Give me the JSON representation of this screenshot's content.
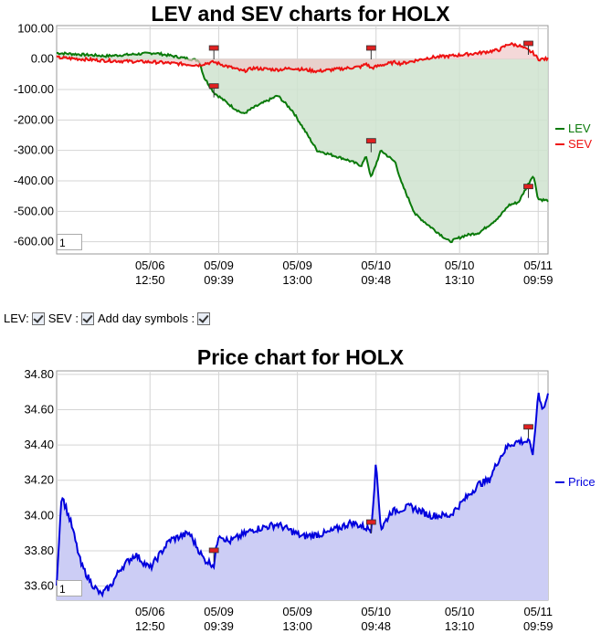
{
  "top_chart": {
    "title": "LEV and SEV charts for HOLX",
    "y_ticks": [
      "100.00",
      "0.00",
      "-100.00",
      "-200.00",
      "-300.00",
      "-400.00",
      "-500.00",
      "-600.00"
    ],
    "x_ticks": [
      {
        "date": "05/06",
        "time": "12:50"
      },
      {
        "date": "05/09",
        "time": "09:39"
      },
      {
        "date": "05/09",
        "time": "13:00"
      },
      {
        "date": "05/10",
        "time": "09:48"
      },
      {
        "date": "05/10",
        "time": "13:10"
      },
      {
        "date": "05/11",
        "time": "09:59"
      }
    ],
    "legend": [
      "LEV",
      "SEV"
    ],
    "zoom_value": "1"
  },
  "controls": {
    "lev_label": "LEV:",
    "sev_label": "SEV :",
    "day_label": "Add day symbols :"
  },
  "bottom_chart": {
    "title": "Price chart for HOLX",
    "y_ticks": [
      "34.80",
      "34.60",
      "34.40",
      "34.20",
      "34.00",
      "33.80",
      "33.60"
    ],
    "x_ticks": [
      {
        "date": "05/06",
        "time": "12:50"
      },
      {
        "date": "05/09",
        "time": "09:39"
      },
      {
        "date": "05/09",
        "time": "13:00"
      },
      {
        "date": "05/10",
        "time": "09:48"
      },
      {
        "date": "05/10",
        "time": "13:10"
      },
      {
        "date": "05/11",
        "time": "09:59"
      }
    ],
    "legend": [
      "Price"
    ],
    "zoom_value": "1"
  },
  "colors": {
    "lev": "#0a7a0a",
    "lev_fill": "#cfe3cf",
    "sev": "#ee1111",
    "sev_fill": "#f0c8c8",
    "price": "#0000dd",
    "price_fill": "#cccdf5",
    "grid": "#d4d4d4"
  },
  "chart_data": [
    {
      "type": "line",
      "title": "LEV and SEV charts for HOLX",
      "xlabel": "",
      "ylabel": "",
      "ylim": [
        -640,
        110
      ],
      "x": [
        0,
        0.1,
        0.2,
        0.29,
        0.3,
        0.32,
        0.36,
        0.38,
        0.4,
        0.45,
        0.48,
        0.53,
        0.59,
        0.62,
        0.63,
        0.64,
        0.66,
        0.69,
        0.7,
        0.73,
        0.76,
        0.8,
        0.83,
        0.86,
        0.9,
        0.92,
        0.94,
        0.97,
        0.98,
        1.0
      ],
      "x_tick_labels": [
        "05/06 12:50",
        "05/09 09:39",
        "05/09 13:00",
        "05/10 09:48",
        "05/10 13:10",
        "05/11 09:59"
      ],
      "x_tick_positions": [
        0.19,
        0.33,
        0.49,
        0.65,
        0.82,
        0.98
      ],
      "series": [
        {
          "name": "LEV",
          "values": [
            20,
            10,
            20,
            -5,
            -60,
            -110,
            -160,
            -180,
            -160,
            -120,
            -170,
            -300,
            -330,
            -350,
            -320,
            -390,
            -300,
            -340,
            -400,
            -510,
            -550,
            -600,
            -580,
            -570,
            -520,
            -480,
            -470,
            -380,
            -460,
            -465
          ]
        },
        {
          "name": "SEV",
          "values": [
            5,
            -5,
            -10,
            -20,
            -15,
            -10,
            -30,
            -40,
            -30,
            -35,
            -30,
            -40,
            -30,
            -25,
            -15,
            -30,
            -20,
            -10,
            -15,
            -5,
            5,
            10,
            15,
            20,
            30,
            50,
            45,
            20,
            0,
            0
          ]
        }
      ],
      "grid": true,
      "legend_placement": "right"
    },
    {
      "type": "area",
      "title": "Price chart for HOLX",
      "xlabel": "",
      "ylabel": "",
      "ylim": [
        33.52,
        34.82
      ],
      "x": [
        0,
        0.01,
        0.03,
        0.05,
        0.07,
        0.09,
        0.11,
        0.13,
        0.16,
        0.19,
        0.23,
        0.27,
        0.3,
        0.32,
        0.33,
        0.35,
        0.4,
        0.45,
        0.5,
        0.55,
        0.6,
        0.64,
        0.65,
        0.66,
        0.68,
        0.72,
        0.76,
        0.8,
        0.84,
        0.86,
        0.88,
        0.9,
        0.92,
        0.94,
        0.96,
        0.97,
        0.98,
        0.99,
        1.0
      ],
      "series": [
        {
          "name": "Price",
          "values": [
            33.62,
            34.12,
            33.95,
            33.72,
            33.62,
            33.55,
            33.6,
            33.7,
            33.78,
            33.7,
            33.86,
            33.9,
            33.75,
            33.72,
            33.9,
            33.85,
            33.92,
            33.95,
            33.88,
            33.9,
            33.96,
            33.92,
            34.3,
            33.92,
            34.02,
            34.05,
            34.0,
            34.0,
            34.12,
            34.18,
            34.2,
            34.32,
            34.4,
            34.42,
            34.42,
            34.35,
            34.7,
            34.6,
            34.68
          ]
        }
      ],
      "grid": true,
      "legend_placement": "right"
    }
  ]
}
